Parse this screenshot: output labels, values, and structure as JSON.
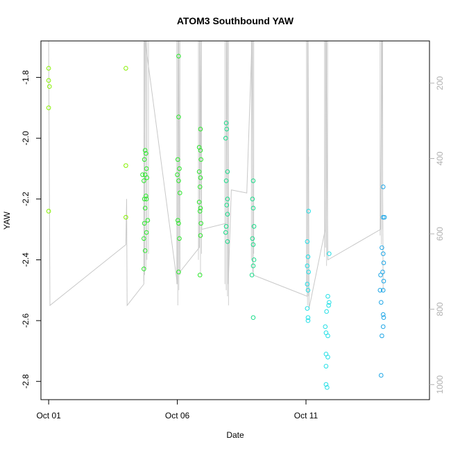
{
  "chart_data": {
    "type": "scatter",
    "title": "ATOM3 Southbound YAW",
    "xlabel": "Date",
    "ylabel": "YAW",
    "x_ticks": [
      "Oct 01",
      "Oct 06",
      "Oct 11"
    ],
    "x_tick_days": [
      1,
      6,
      11
    ],
    "xlim": [
      0.7,
      15.8
    ],
    "ylim": [
      -2.86,
      -1.68
    ],
    "y_ticks": [
      -2.8,
      -2.6,
      -2.4,
      -2.2,
      -2.0,
      -1.8
    ],
    "y2_ticks": [
      200,
      400,
      600,
      800,
      1000
    ],
    "y2lim": [
      1040,
      88
    ],
    "grid": false,
    "series": [
      {
        "color": "#86f000",
        "points": [
          [
            1.0,
            -1.77
          ],
          [
            1.0,
            -1.81
          ],
          [
            1.03,
            -1.83
          ],
          [
            1.0,
            -1.9
          ],
          [
            1.0,
            -2.24
          ],
          [
            4.0,
            -1.77
          ],
          [
            4.0,
            -2.09
          ],
          [
            4.0,
            -2.26
          ]
        ]
      },
      {
        "color": "#2ce82c",
        "points": [
          [
            4.75,
            -2.04
          ],
          [
            4.78,
            -2.05
          ],
          [
            4.72,
            -2.07
          ],
          [
            4.8,
            -2.1
          ],
          [
            4.75,
            -2.12
          ],
          [
            4.65,
            -2.12
          ],
          [
            4.82,
            -2.13
          ],
          [
            4.7,
            -2.14
          ],
          [
            4.78,
            -2.19
          ],
          [
            4.72,
            -2.2
          ],
          [
            4.8,
            -2.2
          ],
          [
            4.75,
            -2.23
          ],
          [
            4.85,
            -2.27
          ],
          [
            4.72,
            -2.28
          ],
          [
            4.8,
            -2.31
          ],
          [
            4.7,
            -2.33
          ],
          [
            4.75,
            -2.37
          ],
          [
            4.7,
            -2.43
          ],
          [
            6.05,
            -1.73
          ],
          [
            6.05,
            -1.93
          ],
          [
            6.02,
            -2.07
          ],
          [
            6.08,
            -2.1
          ],
          [
            6.0,
            -2.12
          ],
          [
            6.05,
            -2.14
          ],
          [
            6.1,
            -2.18
          ],
          [
            6.02,
            -2.27
          ],
          [
            6.05,
            -2.28
          ],
          [
            6.08,
            -2.33
          ],
          [
            6.05,
            -2.44
          ],
          [
            6.9,
            -1.97
          ],
          [
            6.85,
            -2.03
          ],
          [
            6.9,
            -2.04
          ],
          [
            6.92,
            -2.07
          ],
          [
            6.85,
            -2.11
          ],
          [
            6.9,
            -2.13
          ],
          [
            6.88,
            -2.16
          ],
          [
            6.85,
            -2.21
          ],
          [
            6.9,
            -2.23
          ],
          [
            6.88,
            -2.24
          ],
          [
            6.92,
            -2.28
          ],
          [
            6.9,
            -2.32
          ],
          [
            6.88,
            -2.45
          ]
        ]
      },
      {
        "color": "#1bdc8a",
        "points": [
          [
            7.9,
            -1.95
          ],
          [
            7.92,
            -1.97
          ],
          [
            7.88,
            -2.0
          ],
          [
            7.95,
            -2.11
          ],
          [
            7.9,
            -2.14
          ],
          [
            7.95,
            -2.2
          ],
          [
            7.92,
            -2.22
          ],
          [
            7.95,
            -2.25
          ],
          [
            7.9,
            -2.29
          ],
          [
            7.88,
            -2.31
          ],
          [
            7.95,
            -2.34
          ],
          [
            8.95,
            -2.14
          ],
          [
            8.92,
            -2.2
          ],
          [
            8.95,
            -2.23
          ],
          [
            8.98,
            -2.29
          ],
          [
            8.92,
            -2.33
          ],
          [
            8.95,
            -2.35
          ],
          [
            8.98,
            -2.4
          ],
          [
            8.95,
            -2.42
          ],
          [
            8.9,
            -2.45
          ],
          [
            8.95,
            -2.59
          ]
        ]
      },
      {
        "color": "#22dfe6",
        "points": [
          [
            11.1,
            -2.24
          ],
          [
            11.05,
            -2.34
          ],
          [
            11.08,
            -2.39
          ],
          [
            11.05,
            -2.42
          ],
          [
            11.1,
            -2.44
          ],
          [
            11.05,
            -2.48
          ],
          [
            11.08,
            -2.5
          ],
          [
            11.05,
            -2.56
          ],
          [
            11.08,
            -2.59
          ],
          [
            11.08,
            -2.6
          ],
          [
            11.9,
            -2.38
          ],
          [
            11.85,
            -2.52
          ],
          [
            11.9,
            -2.54
          ],
          [
            11.88,
            -2.55
          ],
          [
            11.8,
            -2.57
          ],
          [
            11.75,
            -2.62
          ],
          [
            11.78,
            -2.64
          ],
          [
            11.85,
            -2.65
          ],
          [
            11.78,
            -2.71
          ],
          [
            11.85,
            -2.72
          ],
          [
            11.78,
            -2.75
          ],
          [
            11.78,
            -2.81
          ],
          [
            11.82,
            -2.82
          ]
        ]
      },
      {
        "color": "#1ea6e6",
        "points": [
          [
            14.0,
            -2.16
          ],
          [
            14.05,
            -2.26
          ],
          [
            14.0,
            -2.26
          ],
          [
            13.95,
            -2.36
          ],
          [
            14.0,
            -2.38
          ],
          [
            14.02,
            -2.41
          ],
          [
            13.98,
            -2.44
          ],
          [
            13.9,
            -2.45
          ],
          [
            14.02,
            -2.47
          ],
          [
            13.88,
            -2.5
          ],
          [
            14.0,
            -2.5
          ],
          [
            13.92,
            -2.54
          ],
          [
            14.0,
            -2.58
          ],
          [
            14.02,
            -2.59
          ],
          [
            14.0,
            -2.62
          ],
          [
            13.95,
            -2.65
          ],
          [
            13.92,
            -2.78
          ]
        ]
      }
    ],
    "secondary_line": {
      "color": "#c8c8c8",
      "points": [
        [
          1.0,
          -1.68
        ],
        [
          1.05,
          -2.55
        ],
        [
          4.0,
          -2.35
        ],
        [
          4.03,
          -2.2
        ],
        [
          4.05,
          -2.55
        ],
        [
          4.7,
          -2.48
        ],
        [
          4.75,
          -1.68
        ],
        [
          6.0,
          -2.48
        ],
        [
          6.05,
          -1.68
        ],
        [
          6.1,
          -2.44
        ],
        [
          6.85,
          -2.36
        ],
        [
          6.9,
          -1.68
        ],
        [
          6.95,
          -2.3
        ],
        [
          7.9,
          -2.28
        ],
        [
          7.93,
          -1.68
        ],
        [
          7.98,
          -2.48
        ],
        [
          8.1,
          -2.17
        ],
        [
          8.7,
          -2.18
        ],
        [
          8.9,
          -1.68
        ],
        [
          8.95,
          -2.45
        ],
        [
          11.05,
          -2.52
        ],
        [
          11.08,
          -1.68
        ],
        [
          11.12,
          -2.56
        ],
        [
          11.75,
          -2.3
        ],
        [
          11.78,
          -1.68
        ],
        [
          11.85,
          -2.4
        ],
        [
          13.9,
          -2.3
        ],
        [
          13.95,
          -1.68
        ],
        [
          14.0,
          -2.5
        ]
      ]
    },
    "spikes": [
      {
        "x": 4.7,
        "top": -1.68,
        "bottom": -2.47
      },
      {
        "x": 4.73,
        "top": -1.68,
        "bottom": -2.45
      },
      {
        "x": 4.78,
        "top": -1.68,
        "bottom": -2.43
      },
      {
        "x": 4.82,
        "top": -1.68,
        "bottom": -2.4
      },
      {
        "x": 4.88,
        "top": -1.68,
        "bottom": -2.38
      },
      {
        "x": 5.98,
        "top": -1.68,
        "bottom": -2.48
      },
      {
        "x": 6.02,
        "top": -1.68,
        "bottom": -2.55
      },
      {
        "x": 6.06,
        "top": -1.68,
        "bottom": -2.5
      },
      {
        "x": 6.1,
        "top": -1.68,
        "bottom": -2.45
      },
      {
        "x": 6.82,
        "top": -1.68,
        "bottom": -2.4
      },
      {
        "x": 6.86,
        "top": -1.68,
        "bottom": -2.36
      },
      {
        "x": 6.9,
        "top": -1.68,
        "bottom": -2.45
      },
      {
        "x": 6.94,
        "top": -1.68,
        "bottom": -2.38
      },
      {
        "x": 7.85,
        "top": -1.68,
        "bottom": -2.48
      },
      {
        "x": 7.9,
        "top": -1.68,
        "bottom": -2.5
      },
      {
        "x": 7.95,
        "top": -1.68,
        "bottom": -2.52
      },
      {
        "x": 7.99,
        "top": -1.68,
        "bottom": -2.55
      },
      {
        "x": 8.88,
        "top": -1.68,
        "bottom": -2.4
      },
      {
        "x": 8.93,
        "top": -1.68,
        "bottom": -2.44
      },
      {
        "x": 8.97,
        "top": -1.68,
        "bottom": -2.38
      },
      {
        "x": 11.02,
        "top": -1.68,
        "bottom": -2.5
      },
      {
        "x": 11.06,
        "top": -1.68,
        "bottom": -2.55
      },
      {
        "x": 11.1,
        "top": -2.06,
        "bottom": -2.52
      },
      {
        "x": 11.72,
        "top": -1.68,
        "bottom": -2.39
      },
      {
        "x": 11.76,
        "top": -1.68,
        "bottom": -2.36
      },
      {
        "x": 11.8,
        "top": -1.68,
        "bottom": -2.42
      },
      {
        "x": 11.84,
        "top": -1.68,
        "bottom": -2.38
      },
      {
        "x": 13.88,
        "top": -1.68,
        "bottom": -2.32
      },
      {
        "x": 13.93,
        "top": -1.68,
        "bottom": -2.35
      },
      {
        "x": 13.98,
        "top": -1.68,
        "bottom": -2.3
      }
    ]
  }
}
